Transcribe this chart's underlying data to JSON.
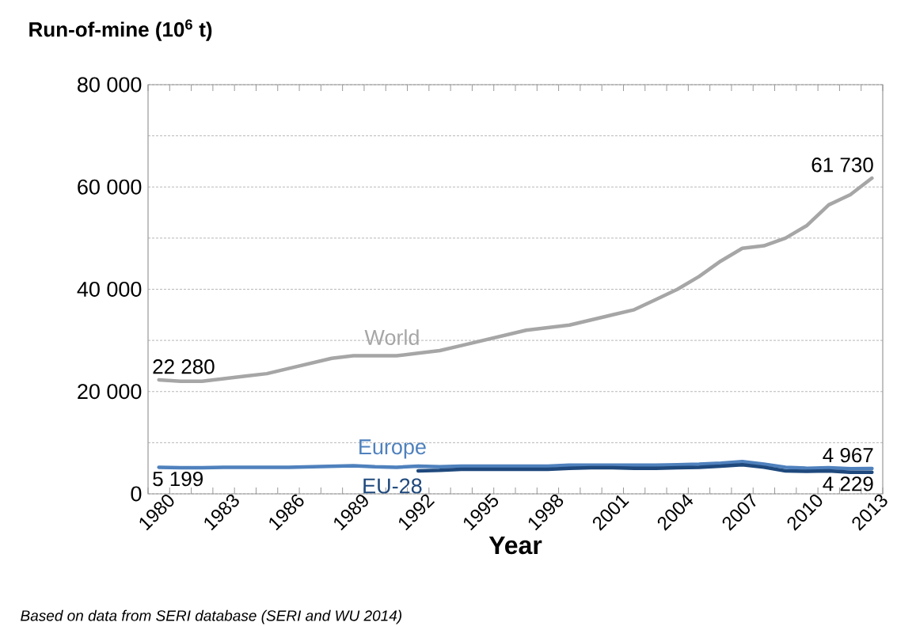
{
  "chart_data": {
    "type": "line",
    "ylabel": "Run-of-mine (10$^{6}$ t)",
    "xlabel": "Year",
    "categories": [
      "1980",
      null,
      null,
      "1983",
      null,
      null,
      "1986",
      null,
      null,
      "1989",
      null,
      null,
      "1992",
      null,
      null,
      "1995",
      null,
      null,
      "1998",
      null,
      null,
      "2001",
      null,
      null,
      "2004",
      null,
      null,
      "2007",
      null,
      null,
      "2010",
      null,
      null,
      "2013"
    ],
    "series": [
      {
        "name": "World",
        "color": "#a6a6a6",
        "values": [
          22280,
          22000,
          22000,
          22500,
          23000,
          23500,
          24500,
          25500,
          26500,
          27000,
          27000,
          27000,
          27500,
          28000,
          29000,
          30000,
          31000,
          32000,
          32500,
          33000,
          34000,
          35000,
          36000,
          38000,
          40000,
          42500,
          45500,
          48000,
          48500,
          50000,
          52500,
          56500,
          58500,
          61730
        ],
        "value_labels": [
          "22 280",
          null,
          null,
          null,
          null,
          null,
          null,
          null,
          null,
          null,
          null,
          null,
          null,
          null,
          null,
          null,
          null,
          null,
          null,
          null,
          null,
          null,
          null,
          null,
          null,
          null,
          null,
          null,
          null,
          null,
          null,
          null,
          null,
          "61 730"
        ]
      },
      {
        "name": "Europe",
        "color": "#4f81bd",
        "values": [
          5199,
          5100,
          5100,
          5200,
          5200,
          5200,
          5200,
          5300,
          5400,
          5500,
          5300,
          5200,
          5400,
          5300,
          5400,
          5400,
          5400,
          5400,
          5400,
          5600,
          5600,
          5600,
          5600,
          5600,
          5700,
          5800,
          6000,
          6300,
          5800,
          5200,
          5000,
          5100,
          4900,
          4967
        ],
        "value_labels": [
          "5 199",
          null,
          null,
          null,
          null,
          null,
          null,
          null,
          null,
          null,
          null,
          null,
          null,
          null,
          null,
          null,
          null,
          null,
          null,
          null,
          null,
          null,
          null,
          null,
          null,
          null,
          null,
          null,
          null,
          null,
          null,
          null,
          null,
          "4 967"
        ]
      },
      {
        "name": "EU-28",
        "color": "#1f497d",
        "values": [
          null,
          null,
          null,
          null,
          null,
          null,
          null,
          null,
          null,
          null,
          null,
          null,
          4500,
          4600,
          4800,
          4800,
          4800,
          4800,
          4800,
          5000,
          5100,
          5100,
          5000,
          5000,
          5100,
          5200,
          5400,
          5700,
          5200,
          4500,
          4400,
          4500,
          4200,
          4229
        ],
        "value_labels": [
          null,
          null,
          null,
          null,
          null,
          null,
          null,
          null,
          null,
          null,
          null,
          null,
          null,
          null,
          null,
          null,
          null,
          null,
          null,
          null,
          null,
          null,
          null,
          null,
          null,
          null,
          null,
          null,
          null,
          null,
          null,
          null,
          null,
          "4 229"
        ]
      }
    ],
    "ylim": [
      0,
      80000
    ],
    "yticks": [
      {
        "value": 0,
        "label": "0"
      },
      {
        "value": 10000,
        "label": null
      },
      {
        "value": 20000,
        "label": "20 000"
      },
      {
        "value": 30000,
        "label": null
      },
      {
        "value": 40000,
        "label": "40 000"
      },
      {
        "value": 50000,
        "label": null
      },
      {
        "value": 60000,
        "label": "60 000"
      },
      {
        "value": 70000,
        "label": null
      },
      {
        "value": 80000,
        "label": "80 000"
      }
    ],
    "grid": "y",
    "marker": "none",
    "line_style": "solid",
    "annotations": [
      "Based on data from SERI database (SERI and WU 2014)"
    ]
  }
}
